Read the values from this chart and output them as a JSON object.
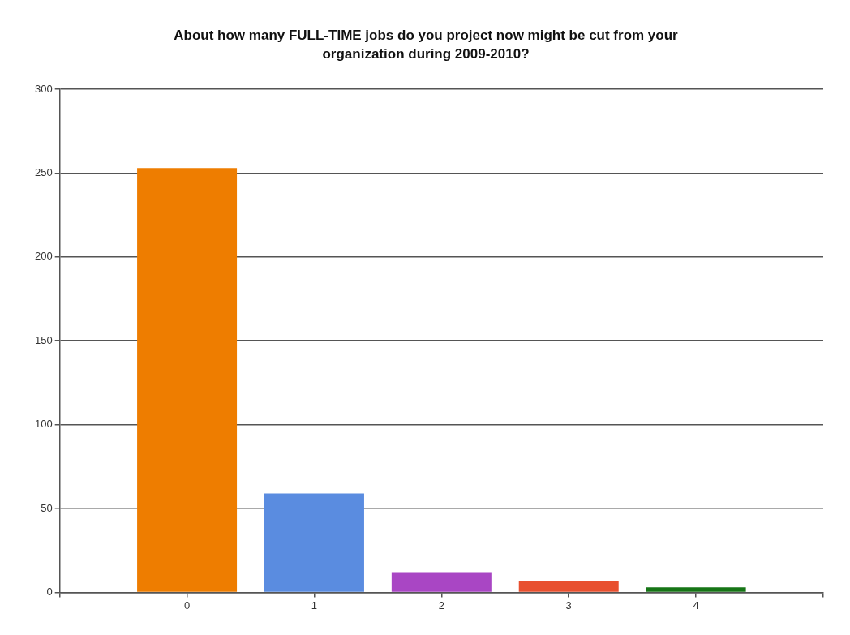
{
  "chart_data": {
    "type": "bar",
    "title": "About how many FULL-TIME jobs do you project now might be cut from your organization during 2009-2010?",
    "x": [
      0,
      1,
      2,
      3,
      4
    ],
    "values": [
      253,
      59,
      12,
      7,
      3
    ],
    "colors": [
      "#ee7d00",
      "#5a8ce0",
      "#a946c4",
      "#e8502f",
      "#167516"
    ],
    "xlim": [
      -1,
      5
    ],
    "xticks": [
      {
        "value": -1,
        "label": null
      },
      0,
      1,
      2,
      3,
      4,
      {
        "value": 5,
        "label": null
      }
    ],
    "ylim": [
      0,
      300
    ],
    "yticks": [
      0,
      50,
      100,
      150,
      200,
      250,
      300
    ],
    "grid": "y",
    "legend": false
  }
}
